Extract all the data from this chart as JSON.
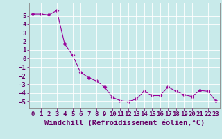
{
  "x": [
    0,
    1,
    2,
    3,
    4,
    5,
    6,
    7,
    8,
    9,
    10,
    11,
    12,
    13,
    14,
    15,
    16,
    17,
    18,
    19,
    20,
    21,
    22,
    23
  ],
  "y": [
    5.2,
    5.2,
    5.1,
    5.6,
    1.7,
    0.4,
    -1.6,
    -2.2,
    -2.6,
    -3.3,
    -4.5,
    -4.9,
    -5.0,
    -4.7,
    -3.8,
    -4.3,
    -4.3,
    -3.3,
    -3.8,
    -4.2,
    -4.4,
    -3.7,
    -3.8,
    -4.9
  ],
  "line_color": "#990099",
  "marker": "D",
  "marker_size": 2.5,
  "bg_color": "#c8eaea",
  "grid_color": "#ffffff",
  "axis_color": "#660066",
  "spine_color": "#888888",
  "xlabel": "Windchill (Refroidissement éolien,°C)",
  "xlim": [
    -0.5,
    23.5
  ],
  "ylim": [
    -5.8,
    6.5
  ],
  "yticks": [
    -5,
    -4,
    -3,
    -2,
    -1,
    0,
    1,
    2,
    3,
    4,
    5
  ],
  "xticks": [
    0,
    1,
    2,
    3,
    4,
    5,
    6,
    7,
    8,
    9,
    10,
    11,
    12,
    13,
    14,
    15,
    16,
    17,
    18,
    19,
    20,
    21,
    22,
    23
  ],
  "tick_labelsize": 6.5,
  "xlabel_fontsize": 7.5
}
